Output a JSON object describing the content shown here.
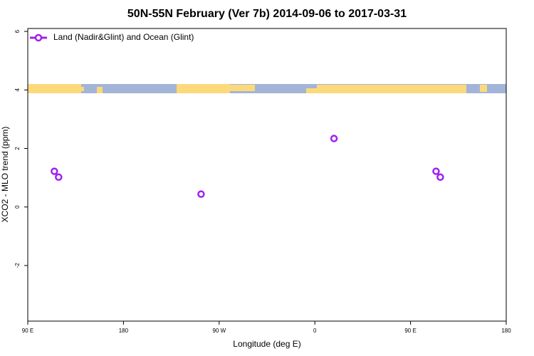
{
  "chart_data": {
    "type": "scatter",
    "title": "50N-55N February (Ver 7b)   2014-09-06 to 2017-03-31",
    "x_label": "Longitude (deg E)",
    "y_label": "XCO2 - MLO trend (ppm)",
    "xlim": [
      90,
      540
    ],
    "ylim": [
      -3.9,
      6.1
    ],
    "xticks": [
      {
        "value": 90,
        "label": "90 E"
      },
      180,
      {
        "value": 270,
        "label": "90 W"
      },
      {
        "value": 360,
        "label": "0"
      },
      {
        "value": 450,
        "label": "90 E"
      },
      {
        "value": 540,
        "label": "180"
      }
    ],
    "yticks": [
      -2,
      0,
      2,
      4,
      6
    ],
    "legend": "top-left",
    "series": [
      {
        "name": "Land (Nadir&Glint) and Ocean (Glint)",
        "color": "#a020f0",
        "x": [
          115,
          119,
          253,
          378,
          474,
          478
        ],
        "values": [
          1.22,
          1.02,
          0.44,
          2.34,
          1.22,
          1.02
        ]
      }
    ]
  }
}
